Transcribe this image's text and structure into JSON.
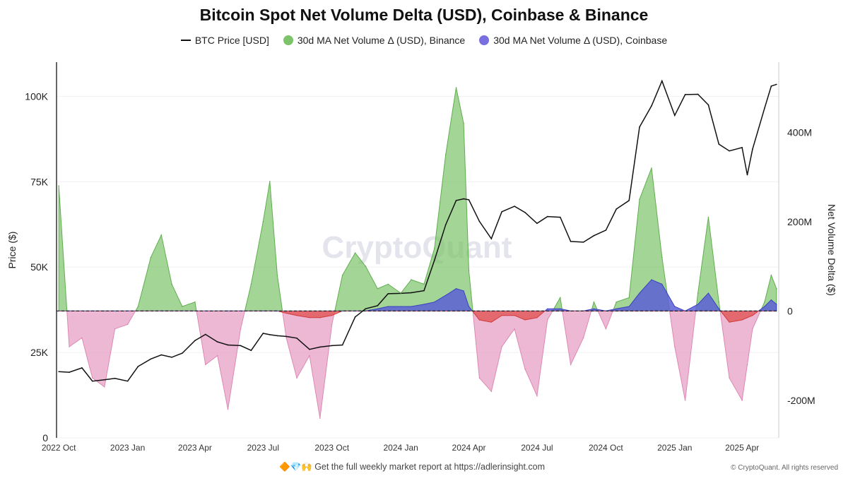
{
  "chart_data": {
    "type": "area",
    "title": "Bitcoin Spot Net Volume Delta (USD), Coinbase & Binance",
    "ylabel_left": "Price ($)",
    "ylabel_right": "Net Volume Delta ($)",
    "left_ticks": [
      "0",
      "25K",
      "50K",
      "75K",
      "100K"
    ],
    "left_tick_values": [
      0,
      25,
      50,
      75,
      100
    ],
    "right_ticks": [
      "-200M",
      "0",
      "200M",
      "400M"
    ],
    "right_tick_values": [
      -200,
      0,
      200,
      400
    ],
    "x_ticks": [
      "2022 Oct",
      "2023 Jan",
      "2023 Apr",
      "2023 Jul",
      "2023 Oct",
      "2024 Jan",
      "2024 Apr",
      "2024 Jul",
      "2024 Oct",
      "2025 Jan",
      "2025 Apr"
    ],
    "x_tick_dates": [
      "2022-10-01",
      "2023-01-01",
      "2023-04-01",
      "2023-07-01",
      "2023-10-01",
      "2024-01-01",
      "2024-04-01",
      "2024-07-01",
      "2024-10-01",
      "2025-01-01",
      "2025-04-01"
    ],
    "xlim": [
      "2022-09-28",
      "2025-05-20"
    ],
    "ylim_left": [
      0,
      110
    ],
    "ylim_right": [
      -284,
      557
    ],
    "legend_position": "top",
    "grid": true,
    "colors": {
      "price": "#111111",
      "binance_pos": "#7cc36a",
      "binance_neg": "#e9a6c8",
      "coinbase_pos": "#5c5fd6",
      "coinbase_neg": "#e05555"
    },
    "series": [
      {
        "name": "BTC Price [USD]",
        "unit": "K USD",
        "axis": "left"
      },
      {
        "name": "30d MA Net Volume Δ (USD), Binance",
        "unit": "M USD",
        "axis": "right"
      },
      {
        "name": "30d MA Net Volume Δ (USD), Coinbase",
        "unit": "M USD",
        "axis": "right"
      }
    ],
    "dates": [
      "2022-10-01",
      "2022-10-15",
      "2022-11-01",
      "2022-11-15",
      "2022-12-01",
      "2022-12-15",
      "2023-01-01",
      "2023-01-15",
      "2023-02-01",
      "2023-02-15",
      "2023-03-01",
      "2023-03-15",
      "2023-04-01",
      "2023-04-15",
      "2023-05-01",
      "2023-05-15",
      "2023-06-01",
      "2023-06-15",
      "2023-07-01",
      "2023-07-10",
      "2023-07-20",
      "2023-08-01",
      "2023-08-15",
      "2023-09-01",
      "2023-09-15",
      "2023-10-01",
      "2023-10-15",
      "2023-11-01",
      "2023-11-15",
      "2023-12-01",
      "2023-12-15",
      "2024-01-01",
      "2024-01-15",
      "2024-02-01",
      "2024-02-15",
      "2024-03-01",
      "2024-03-15",
      "2024-03-25",
      "2024-04-01",
      "2024-04-15",
      "2024-05-01",
      "2024-05-15",
      "2024-06-01",
      "2024-06-15",
      "2024-07-01",
      "2024-07-15",
      "2024-08-01",
      "2024-08-15",
      "2024-09-01",
      "2024-09-15",
      "2024-10-01",
      "2024-10-15",
      "2024-11-01",
      "2024-11-15",
      "2024-12-01",
      "2024-12-15",
      "2025-01-01",
      "2025-01-15",
      "2025-02-01",
      "2025-02-15",
      "2025-03-01",
      "2025-03-15",
      "2025-04-01",
      "2025-04-08",
      "2025-04-15",
      "2025-05-01",
      "2025-05-10",
      "2025-05-17"
    ],
    "price": [
      19.4,
      19.2,
      20.5,
      16.6,
      17.0,
      17.4,
      16.6,
      20.9,
      23.1,
      24.3,
      23.6,
      24.8,
      28.5,
      30.3,
      28.1,
      27.2,
      27.0,
      25.6,
      30.6,
      30.2,
      29.9,
      29.7,
      29.2,
      25.9,
      26.6,
      27.0,
      27.2,
      35.4,
      37.8,
      38.7,
      42.2,
      42.3,
      42.5,
      43.1,
      52.0,
      62.4,
      69.5,
      70.0,
      69.7,
      63.4,
      58.3,
      66.2,
      67.8,
      66.0,
      62.8,
      64.8,
      64.6,
      57.5,
      57.3,
      59.2,
      60.8,
      67.0,
      69.5,
      91.0,
      97.2,
      104.5,
      94.4,
      100.5,
      100.6,
      97.5,
      86.0,
      84.0,
      85.0,
      77.0,
      84.5,
      96.5,
      103.0,
      103.5
    ],
    "binance": [
      280,
      -80,
      -60,
      -150,
      -170,
      -40,
      -30,
      10,
      120,
      170,
      60,
      10,
      20,
      -120,
      -100,
      -220,
      -40,
      60,
      200,
      290,
      80,
      -60,
      -150,
      -100,
      -240,
      -30,
      80,
      130,
      100,
      50,
      60,
      40,
      70,
      60,
      140,
      350,
      500,
      420,
      90,
      -150,
      -180,
      -80,
      -40,
      -130,
      -190,
      -20,
      30,
      -120,
      -60,
      20,
      -40,
      20,
      30,
      250,
      320,
      120,
      -80,
      -200,
      40,
      210,
      20,
      -150,
      -200,
      -120,
      -40,
      20,
      80,
      50
    ],
    "coinbase": [
      0,
      0,
      0,
      0,
      0,
      0,
      0,
      0,
      0,
      0,
      0,
      0,
      0,
      0,
      0,
      0,
      0,
      0,
      0,
      0,
      0,
      -5,
      -10,
      -15,
      -15,
      -10,
      0,
      0,
      0,
      5,
      10,
      10,
      10,
      15,
      20,
      35,
      50,
      45,
      10,
      -20,
      -25,
      -10,
      -10,
      -20,
      -15,
      5,
      5,
      0,
      0,
      5,
      0,
      5,
      10,
      40,
      70,
      60,
      10,
      0,
      15,
      40,
      5,
      -25,
      -20,
      -15,
      -10,
      10,
      25,
      15
    ]
  },
  "watermark": "CryptoQuant",
  "footer": {
    "emojis": "🔶💎🙌",
    "text": "Get the full weekly market report at ",
    "link": "https://adlerinsight.com",
    "copyright": "© CryptoQuant. All rights reserved"
  }
}
